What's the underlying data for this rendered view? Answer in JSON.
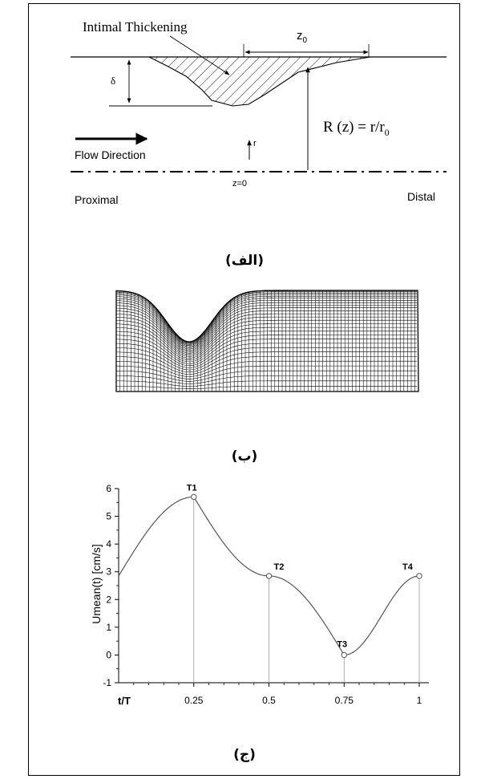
{
  "panel_a": {
    "title": "Intimal Thickening",
    "z0": "z",
    "z0_sub": "0",
    "delta": "δ",
    "radius_eq_1": "R (z) = r/r",
    "radius_eq_sub": "0",
    "r_label": "r",
    "flow": "Flow Direction",
    "z_eq": "z=0",
    "proximal": "Proximal",
    "distal": "Distal",
    "caption": "(الف)"
  },
  "panel_b": {
    "caption": "(ب)"
  },
  "panel_c": {
    "caption": "(ج)"
  },
  "chart_data": {
    "type": "line",
    "xlabel": "t/T",
    "ylabel": "Umean(t) [cm/s]",
    "xlim": [
      0,
      1
    ],
    "ylim": [
      -1,
      6
    ],
    "x_ticks": [
      "0.25",
      "0.5",
      "0.75",
      "1"
    ],
    "y_ticks": [
      "-1",
      "0",
      "1",
      "2",
      "3",
      "4",
      "5",
      "6"
    ],
    "series": [
      {
        "x": [
          0,
          0.25,
          0.5,
          0.75,
          1
        ],
        "y": [
          2.85,
          5.7,
          2.85,
          0,
          2.85
        ]
      }
    ],
    "annotations": [
      {
        "label": "T1",
        "x": 0.25,
        "y": 5.7
      },
      {
        "label": "T2",
        "x": 0.5,
        "y": 2.85
      },
      {
        "label": "T3",
        "x": 0.75,
        "y": 0
      },
      {
        "label": "T4",
        "x": 1,
        "y": 2.85
      }
    ],
    "grid": false
  }
}
